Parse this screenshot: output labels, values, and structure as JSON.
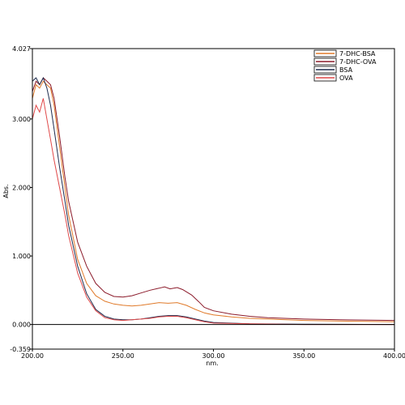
{
  "chart_data": {
    "type": "line",
    "xlabel": "nm.",
    "ylabel": "Abs.",
    "xlim": [
      200,
      400
    ],
    "ylim": [
      -0.359,
      4.027
    ],
    "x_ticks": [
      200,
      250,
      300,
      350,
      400
    ],
    "x_tick_labels": [
      "200.00",
      "250.00",
      "300.00",
      "350.00",
      "400.00"
    ],
    "y_ticks": [
      4.027,
      3.0,
      2.0,
      1.0,
      0.0,
      -0.359
    ],
    "y_tick_labels": [
      "4.027",
      "3.000",
      "2.000",
      "1.000",
      "0.000",
      "-0.359"
    ],
    "legend_position": "top-right",
    "series": [
      {
        "name": "7-DHC-BSA",
        "color": "#e07a2a",
        "points": [
          [
            200,
            3.3
          ],
          [
            202,
            3.5
          ],
          [
            204,
            3.45
          ],
          [
            206,
            3.55
          ],
          [
            208,
            3.5
          ],
          [
            210,
            3.45
          ],
          [
            212,
            3.2
          ],
          [
            215,
            2.6
          ],
          [
            218,
            2.0
          ],
          [
            220,
            1.6
          ],
          [
            225,
            0.95
          ],
          [
            230,
            0.6
          ],
          [
            235,
            0.42
          ],
          [
            240,
            0.34
          ],
          [
            245,
            0.3
          ],
          [
            250,
            0.28
          ],
          [
            255,
            0.27
          ],
          [
            260,
            0.28
          ],
          [
            265,
            0.3
          ],
          [
            270,
            0.32
          ],
          [
            275,
            0.31
          ],
          [
            280,
            0.32
          ],
          [
            285,
            0.28
          ],
          [
            290,
            0.22
          ],
          [
            295,
            0.17
          ],
          [
            300,
            0.14
          ],
          [
            310,
            0.11
          ],
          [
            320,
            0.09
          ],
          [
            330,
            0.08
          ],
          [
            350,
            0.06
          ],
          [
            370,
            0.05
          ],
          [
            400,
            0.04
          ]
        ]
      },
      {
        "name": "7-DHC-OVA",
        "color": "#8b1a2a",
        "points": [
          [
            200,
            3.4
          ],
          [
            202,
            3.55
          ],
          [
            204,
            3.5
          ],
          [
            206,
            3.6
          ],
          [
            208,
            3.55
          ],
          [
            210,
            3.5
          ],
          [
            212,
            3.3
          ],
          [
            215,
            2.75
          ],
          [
            218,
            2.15
          ],
          [
            220,
            1.8
          ],
          [
            225,
            1.2
          ],
          [
            230,
            0.85
          ],
          [
            235,
            0.6
          ],
          [
            240,
            0.47
          ],
          [
            245,
            0.41
          ],
          [
            250,
            0.4
          ],
          [
            255,
            0.42
          ],
          [
            260,
            0.46
          ],
          [
            265,
            0.5
          ],
          [
            270,
            0.53
          ],
          [
            273,
            0.55
          ],
          [
            276,
            0.52
          ],
          [
            280,
            0.54
          ],
          [
            283,
            0.51
          ],
          [
            288,
            0.43
          ],
          [
            292,
            0.33
          ],
          [
            295,
            0.25
          ],
          [
            300,
            0.2
          ],
          [
            310,
            0.15
          ],
          [
            320,
            0.12
          ],
          [
            330,
            0.1
          ],
          [
            350,
            0.08
          ],
          [
            370,
            0.07
          ],
          [
            400,
            0.06
          ]
        ]
      },
      {
        "name": "BSA",
        "color": "#1f2d4f",
        "points": [
          [
            200,
            3.55
          ],
          [
            202,
            3.6
          ],
          [
            204,
            3.5
          ],
          [
            206,
            3.6
          ],
          [
            208,
            3.45
          ],
          [
            210,
            3.2
          ],
          [
            212,
            2.85
          ],
          [
            215,
            2.3
          ],
          [
            218,
            1.8
          ],
          [
            220,
            1.45
          ],
          [
            225,
            0.85
          ],
          [
            230,
            0.45
          ],
          [
            235,
            0.22
          ],
          [
            240,
            0.12
          ],
          [
            245,
            0.08
          ],
          [
            250,
            0.07
          ],
          [
            255,
            0.07
          ],
          [
            260,
            0.08
          ],
          [
            265,
            0.1
          ],
          [
            270,
            0.12
          ],
          [
            275,
            0.13
          ],
          [
            280,
            0.13
          ],
          [
            285,
            0.11
          ],
          [
            290,
            0.08
          ],
          [
            295,
            0.05
          ],
          [
            300,
            0.03
          ],
          [
            320,
            0.01
          ],
          [
            350,
            0.005
          ],
          [
            400,
            0.0
          ]
        ]
      },
      {
        "name": "OVA",
        "color": "#e04848",
        "points": [
          [
            200,
            3.0
          ],
          [
            202,
            3.2
          ],
          [
            204,
            3.1
          ],
          [
            206,
            3.3
          ],
          [
            208,
            3.0
          ],
          [
            210,
            2.7
          ],
          [
            212,
            2.4
          ],
          [
            215,
            2.0
          ],
          [
            218,
            1.6
          ],
          [
            220,
            1.3
          ],
          [
            225,
            0.75
          ],
          [
            230,
            0.4
          ],
          [
            235,
            0.2
          ],
          [
            240,
            0.1
          ],
          [
            245,
            0.07
          ],
          [
            250,
            0.06
          ],
          [
            255,
            0.07
          ],
          [
            260,
            0.08
          ],
          [
            265,
            0.09
          ],
          [
            270,
            0.11
          ],
          [
            275,
            0.12
          ],
          [
            280,
            0.12
          ],
          [
            285,
            0.1
          ],
          [
            290,
            0.07
          ],
          [
            295,
            0.04
          ],
          [
            300,
            0.02
          ],
          [
            320,
            0.01
          ],
          [
            350,
            0.0
          ],
          [
            400,
            0.0
          ]
        ]
      }
    ]
  }
}
